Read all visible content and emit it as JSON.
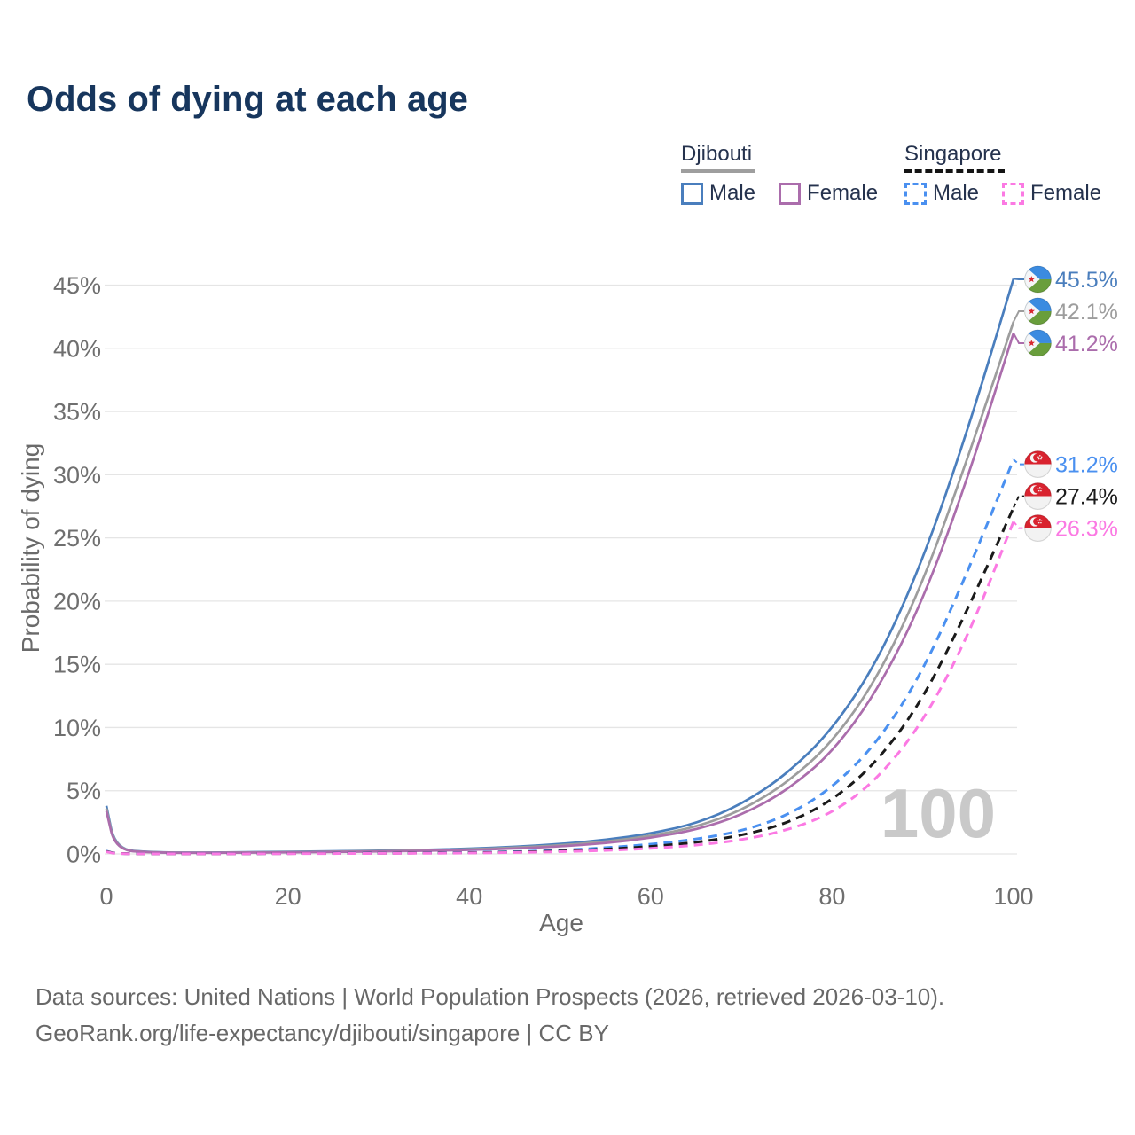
{
  "title": "Odds of dying at each age",
  "watermark": "100",
  "legend": {
    "groups": [
      {
        "id": "djibouti",
        "name": "Djibouti",
        "line_style": "solid",
        "line_color": "#9e9e9e",
        "items": [
          {
            "label": "Male",
            "color": "#4a7ebd",
            "dashed": false
          },
          {
            "label": "Female",
            "color": "#ab6dac",
            "dashed": false
          }
        ]
      },
      {
        "id": "singapore",
        "name": "Singapore",
        "line_style": "dashed",
        "line_color": "#141414",
        "items": [
          {
            "label": "Male",
            "color": "#4a90f0",
            "dashed": true
          },
          {
            "label": "Female",
            "color": "#fb79e3",
            "dashed": true
          }
        ]
      }
    ]
  },
  "chart_data": {
    "type": "line",
    "title": "Odds of dying at each age",
    "xlabel": "Age",
    "ylabel": "Probability of dying",
    "xlim": [
      0,
      100
    ],
    "ylim_pct": [
      0,
      45
    ],
    "grid": true,
    "legend_position": "top-right",
    "x_ticks": [
      {
        "v": 0,
        "label": "0"
      },
      {
        "v": 20,
        "label": "20"
      },
      {
        "v": 40,
        "label": "40"
      },
      {
        "v": 60,
        "label": "60"
      },
      {
        "v": 80,
        "label": "80"
      },
      {
        "v": 100,
        "label": "100"
      }
    ],
    "y_ticks": [
      {
        "v": 0,
        "label": "0%"
      },
      {
        "v": 5,
        "label": "5%"
      },
      {
        "v": 10,
        "label": "10%"
      },
      {
        "v": 15,
        "label": "15%"
      },
      {
        "v": 20,
        "label": "20%"
      },
      {
        "v": 25,
        "label": "25%"
      },
      {
        "v": 30,
        "label": "30%"
      },
      {
        "v": 35,
        "label": "35%"
      },
      {
        "v": 40,
        "label": "40%"
      },
      {
        "v": 45,
        "label": "45%"
      }
    ],
    "ages": [
      0,
      1,
      5,
      10,
      15,
      20,
      25,
      30,
      35,
      40,
      45,
      50,
      55,
      60,
      65,
      70,
      75,
      80,
      85,
      90,
      95,
      100
    ],
    "series": [
      {
        "id": "djibouti-male",
        "name": "Djibouti — Male",
        "group": "Djibouti",
        "sex": "Male",
        "color": "#4a7ebd",
        "dashed": false,
        "flag": "djibouti",
        "end_label": "45.5%",
        "end_value_pct": 45.5,
        "values_pct": [
          3.8,
          0.35,
          0.12,
          0.1,
          0.13,
          0.17,
          0.21,
          0.25,
          0.31,
          0.41,
          0.56,
          0.78,
          1.1,
          1.6,
          2.4,
          3.9,
          6.3,
          9.8,
          15.2,
          23.2,
          33.6,
          45.5
        ]
      },
      {
        "id": "djibouti-both",
        "name": "Djibouti — Both sexes",
        "group": "Djibouti",
        "sex": "Both",
        "color": "#9d9d9d",
        "dashed": false,
        "flag": "djibouti",
        "end_label": "42.1%",
        "end_value_pct": 42.1,
        "values_pct": [
          3.6,
          0.33,
          0.11,
          0.09,
          0.11,
          0.14,
          0.18,
          0.22,
          0.27,
          0.36,
          0.49,
          0.68,
          0.96,
          1.42,
          2.12,
          3.42,
          5.6,
          8.8,
          13.9,
          21.4,
          31.4,
          42.1
        ]
      },
      {
        "id": "djibouti-female",
        "name": "Djibouti — Female",
        "group": "Djibouti",
        "sex": "Female",
        "color": "#ab6dac",
        "dashed": false,
        "flag": "djibouti",
        "end_label": "41.2%",
        "end_value_pct": 41.2,
        "values_pct": [
          3.4,
          0.3,
          0.1,
          0.08,
          0.1,
          0.12,
          0.15,
          0.19,
          0.24,
          0.31,
          0.42,
          0.59,
          0.84,
          1.26,
          1.9,
          3.05,
          5.0,
          8.0,
          12.9,
          20.0,
          29.8,
          41.2
        ]
      },
      {
        "id": "singapore-male",
        "name": "Singapore — Male",
        "group": "Singapore",
        "sex": "Male",
        "color": "#4a90f0",
        "dashed": true,
        "flag": "singapore",
        "end_label": "31.2%",
        "end_value_pct": 31.2,
        "values_pct": [
          0.22,
          0.02,
          0.01,
          0.01,
          0.02,
          0.04,
          0.05,
          0.06,
          0.08,
          0.11,
          0.17,
          0.28,
          0.48,
          0.75,
          1.15,
          1.8,
          3.0,
          5.2,
          8.8,
          14.4,
          22.4,
          31.2
        ]
      },
      {
        "id": "singapore-both",
        "name": "Singapore — Both sexes",
        "group": "Singapore",
        "sex": "Both",
        "color": "#1a1a1a",
        "dashed": true,
        "flag": "singapore",
        "end_label": "27.4%",
        "end_value_pct": 27.4,
        "values_pct": [
          0.2,
          0.018,
          0.009,
          0.009,
          0.015,
          0.03,
          0.04,
          0.05,
          0.07,
          0.09,
          0.14,
          0.22,
          0.37,
          0.58,
          0.9,
          1.45,
          2.4,
          4.2,
          7.3,
          12.2,
          19.4,
          27.4
        ]
      },
      {
        "id": "singapore-female",
        "name": "Singapore — Female",
        "group": "Singapore",
        "sex": "Female",
        "color": "#fb79e3",
        "dashed": true,
        "flag": "singapore",
        "end_label": "26.3%",
        "end_value_pct": 26.3,
        "values_pct": [
          0.17,
          0.015,
          0.008,
          0.008,
          0.012,
          0.02,
          0.03,
          0.04,
          0.05,
          0.07,
          0.11,
          0.17,
          0.27,
          0.43,
          0.68,
          1.1,
          1.85,
          3.2,
          5.9,
          10.4,
          17.2,
          26.3
        ]
      }
    ]
  },
  "footer": {
    "line1": "Data sources: United Nations | World Population Prospects (2026, retrieved 2026-03-10).",
    "line2": "GeoRank.org/life-expectancy/djibouti/singapore | CC BY"
  }
}
